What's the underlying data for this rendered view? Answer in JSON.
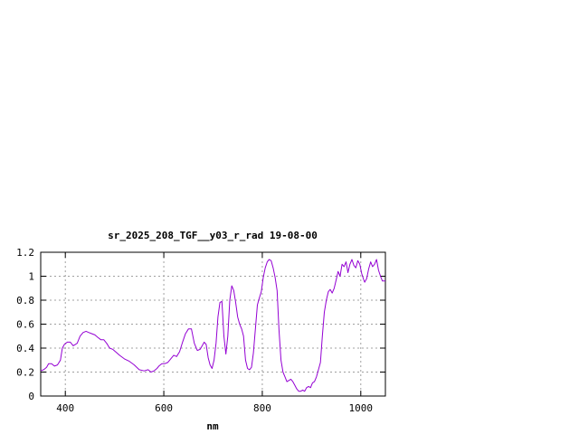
{
  "chart_data": {
    "type": "line",
    "title": "sr_2025_208_TGF__y03_r_rad 19-08-00",
    "xlabel": "nm",
    "ylabel": "",
    "xlim": [
      350,
      1050
    ],
    "ylim": [
      0,
      1.2
    ],
    "grid": true,
    "x_ticks": [
      400,
      600,
      800,
      1000
    ],
    "x_tick_labels": [
      "400",
      "600",
      "800",
      "1000"
    ],
    "y_ticks": [
      0,
      0.2,
      0.4,
      0.6,
      0.8,
      1,
      1.2
    ],
    "y_tick_labels": [
      "0",
      "0.2",
      "0.4",
      "0.6",
      "0.8",
      "1",
      "1.2"
    ],
    "line_color": "#9400d3",
    "series": [
      {
        "x": [
          350,
          356,
          362,
          366,
          372,
          378,
          384,
          390,
          394,
          398,
          404,
          410,
          416,
          424,
          430,
          436,
          442,
          448,
          454,
          460,
          466,
          472,
          478,
          484,
          490,
          496,
          502,
          510,
          520,
          530,
          540,
          550,
          560,
          568,
          574,
          580,
          586,
          590,
          596,
          602,
          608,
          614,
          620,
          626,
          632,
          638,
          644,
          650,
          656,
          662,
          668,
          674,
          678,
          682,
          686,
          690,
          694,
          698,
          702,
          706,
          710,
          714,
          718,
          722,
          726,
          730,
          734,
          738,
          742,
          746,
          750,
          754,
          758,
          762,
          766,
          770,
          774,
          778,
          782,
          786,
          790,
          794,
          798,
          802,
          806,
          810,
          814,
          818,
          822,
          826,
          830,
          834,
          838,
          842,
          846,
          850,
          854,
          858,
          862,
          866,
          870,
          874,
          878,
          882,
          886,
          890,
          894,
          898,
          902,
          906,
          910,
          914,
          918,
          922,
          926,
          930,
          934,
          938,
          942,
          946,
          950,
          954,
          958,
          962,
          966,
          970,
          974,
          978,
          982,
          986,
          990,
          994,
          998,
          1002,
          1006,
          1008,
          1012,
          1016,
          1020,
          1024,
          1028,
          1032,
          1036,
          1040,
          1044,
          1048,
          1050
        ],
        "y": [
          0.21,
          0.22,
          0.24,
          0.27,
          0.27,
          0.25,
          0.26,
          0.3,
          0.4,
          0.43,
          0.45,
          0.45,
          0.42,
          0.44,
          0.5,
          0.53,
          0.54,
          0.53,
          0.52,
          0.51,
          0.49,
          0.47,
          0.47,
          0.44,
          0.4,
          0.39,
          0.37,
          0.34,
          0.31,
          0.29,
          0.26,
          0.22,
          0.21,
          0.22,
          0.2,
          0.21,
          0.23,
          0.25,
          0.27,
          0.27,
          0.28,
          0.31,
          0.34,
          0.33,
          0.37,
          0.45,
          0.52,
          0.56,
          0.56,
          0.44,
          0.38,
          0.39,
          0.42,
          0.45,
          0.43,
          0.32,
          0.26,
          0.23,
          0.3,
          0.44,
          0.66,
          0.78,
          0.79,
          0.5,
          0.35,
          0.5,
          0.8,
          0.92,
          0.88,
          0.78,
          0.66,
          0.6,
          0.56,
          0.5,
          0.3,
          0.23,
          0.22,
          0.24,
          0.36,
          0.56,
          0.76,
          0.82,
          0.87,
          0.99,
          1.07,
          1.12,
          1.14,
          1.13,
          1.07,
          0.99,
          0.88,
          0.55,
          0.3,
          0.2,
          0.16,
          0.12,
          0.13,
          0.14,
          0.12,
          0.09,
          0.06,
          0.04,
          0.04,
          0.05,
          0.04,
          0.07,
          0.08,
          0.07,
          0.11,
          0.12,
          0.16,
          0.22,
          0.28,
          0.5,
          0.7,
          0.8,
          0.87,
          0.89,
          0.86,
          0.9,
          0.97,
          1.04,
          1.0,
          1.1,
          1.08,
          1.12,
          1.03,
          1.1,
          1.14,
          1.09,
          1.07,
          1.13,
          1.1,
          1.02,
          0.97,
          0.95,
          0.98,
          1.06,
          1.12,
          1.08,
          1.1,
          1.14,
          1.05,
          1.0,
          0.96,
          0.96,
          0.96
        ]
      }
    ]
  }
}
